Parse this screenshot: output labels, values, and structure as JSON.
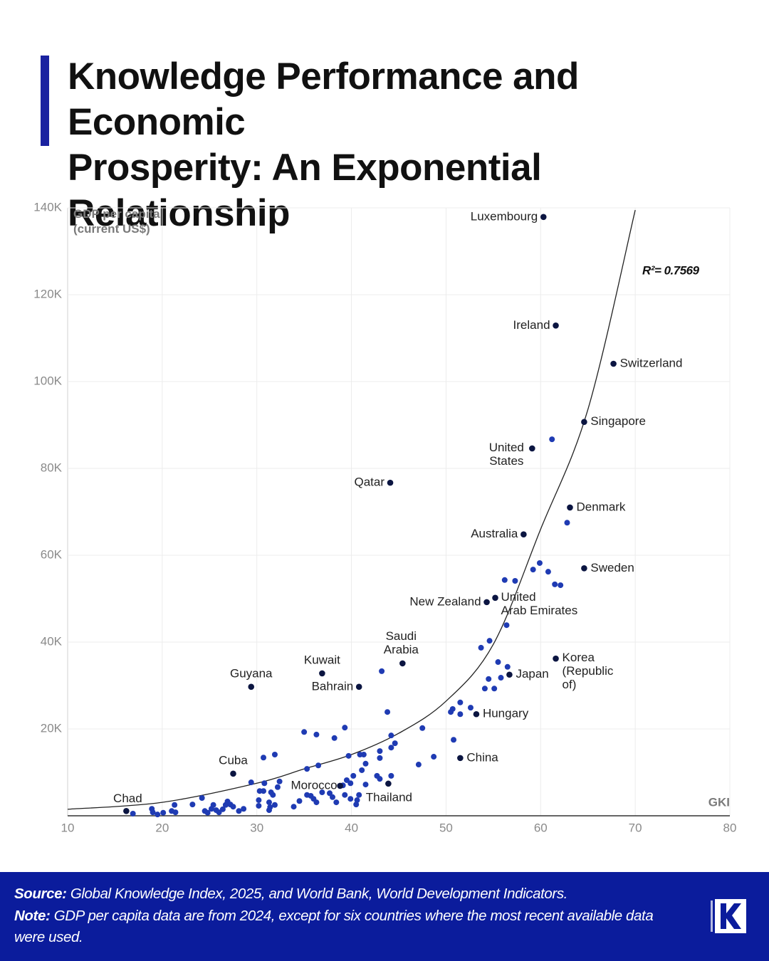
{
  "chart_data": {
    "type": "scatter",
    "title": "Knowledge Performance and Economic\nProsperity: An Exponential Relationship",
    "y_label": "GDP per capita\n(current US$)",
    "x_label": "GKI",
    "annotation": "R²= 0.7569",
    "xlim": [
      10,
      80
    ],
    "xticks": [
      10,
      20,
      30,
      40,
      50,
      60,
      70,
      80
    ],
    "ylim": [
      0,
      140000
    ],
    "yticks": [
      {
        "value": 20000,
        "label": "20K"
      },
      {
        "value": 40000,
        "label": "40K"
      },
      {
        "value": 60000,
        "label": "60K"
      },
      {
        "value": 80000,
        "label": "80K"
      },
      {
        "value": 100000,
        "label": "100K"
      },
      {
        "value": 120000,
        "label": "120K"
      },
      {
        "value": 140000,
        "label": "140K"
      }
    ],
    "grid": true,
    "point_color": "#1f3bb3",
    "labeled_color": "#0b1541",
    "trend_color": "#222222",
    "labeled_points": [
      {
        "label": "Luxembourg",
        "x": 60.3,
        "y": 137900
      },
      {
        "label": "Ireland",
        "x": 61.6,
        "y": 112900
      },
      {
        "label": "Switzerland",
        "x": 67.7,
        "y": 104100
      },
      {
        "label": "Singapore",
        "x": 64.6,
        "y": 90700
      },
      {
        "label": "United\nStates",
        "x": 59.1,
        "y": 84600
      },
      {
        "label": "Qatar",
        "x": 44.1,
        "y": 76700
      },
      {
        "label": "Denmark",
        "x": 63.1,
        "y": 71000
      },
      {
        "label": "Australia",
        "x": 58.2,
        "y": 64800
      },
      {
        "label": "Sweden",
        "x": 64.6,
        "y": 57000
      },
      {
        "label": "New Zealand",
        "x": 54.3,
        "y": 49200
      },
      {
        "label": "United\nArab Emirates",
        "x": 55.2,
        "y": 50200
      },
      {
        "label": "Saudi\nArabia",
        "x": 45.4,
        "y": 35100
      },
      {
        "label": "Korea\n(Republic\nof)",
        "x": 61.6,
        "y": 36200
      },
      {
        "label": "Japan",
        "x": 56.7,
        "y": 32500
      },
      {
        "label": "Kuwait",
        "x": 36.9,
        "y": 32800
      },
      {
        "label": "Guyana",
        "x": 29.4,
        "y": 29700
      },
      {
        "label": "Bahrain",
        "x": 40.8,
        "y": 29700
      },
      {
        "label": "Hungary",
        "x": 53.2,
        "y": 23400
      },
      {
        "label": "China",
        "x": 51.5,
        "y": 13300
      },
      {
        "label": "Cuba",
        "x": 27.5,
        "y": 9700
      },
      {
        "label": "Morocco",
        "x": 38.8,
        "y": 6900
      },
      {
        "label": "Thailand",
        "x": 43.9,
        "y": 7400
      },
      {
        "label": "Chad",
        "x": 16.2,
        "y": 1100
      }
    ],
    "points": {
      "x": [
        61.2,
        62.8,
        59.9,
        60.8,
        59.2,
        56.2,
        57.3,
        61.5,
        62.1,
        56.4,
        54.6,
        53.7,
        55.5,
        56.5,
        55.8,
        54.5,
        54.1,
        55.1,
        51.5,
        52.6,
        50.7,
        50.5,
        51.5,
        50.8,
        48.7,
        47.5,
        47.1,
        43.2,
        43.8,
        44.2,
        44.6,
        44.2,
        43.0,
        43.0,
        40.9,
        41.3,
        39.7,
        39.3,
        38.2,
        36.3,
        35.0,
        31.9,
        30.7,
        36.5,
        35.3,
        41.5,
        41.1,
        42.7,
        44.2,
        43.0,
        40.2,
        39.5,
        39.9,
        39.1,
        29.4,
        30.8,
        32.4,
        32.2,
        30.3,
        30.7,
        31.5,
        31.7,
        30.2,
        31.3,
        31.9,
        30.2,
        31.3,
        31.4,
        33.9,
        34.5,
        35.3,
        35.7,
        36.0,
        36.3,
        36.9,
        37.7,
        38.0,
        38.4,
        39.3,
        39.9,
        40.6,
        40.8,
        40.5,
        41.5,
        24.2,
        23.2,
        21.3,
        24.5,
        25.2,
        25.4,
        25.7,
        26.0,
        26.7,
        26.9,
        27.2,
        27.5,
        28.1,
        28.6,
        26.4,
        24.8,
        18.9,
        19.0,
        19.5,
        20.1,
        21.0,
        21.4,
        16.9
      ],
      "y": [
        86700,
        67500,
        58200,
        56200,
        56700,
        54300,
        54100,
        53300,
        53100,
        43900,
        40300,
        38700,
        35400,
        34300,
        31800,
        31500,
        29300,
        29300,
        26100,
        24900,
        24600,
        23900,
        23400,
        17500,
        13600,
        20200,
        11800,
        33300,
        23900,
        18500,
        16700,
        15700,
        14900,
        13300,
        14100,
        14100,
        13800,
        20300,
        17900,
        18700,
        19300,
        14100,
        13400,
        11600,
        10800,
        12000,
        10500,
        9200,
        9200,
        8500,
        9200,
        8200,
        7500,
        7000,
        7700,
        7500,
        7900,
        6600,
        5700,
        5700,
        5400,
        4800,
        3600,
        3100,
        2500,
        2300,
        1300,
        2000,
        2100,
        3400,
        4800,
        4600,
        3900,
        3100,
        5400,
        5200,
        4300,
        3100,
        4800,
        3900,
        3600,
        4800,
        2600,
        7200,
        4100,
        2600,
        2500,
        1100,
        1600,
        2500,
        1300,
        800,
        2500,
        3300,
        2600,
        2100,
        1100,
        1600,
        1500,
        700,
        1600,
        800,
        300,
        700,
        1100,
        800,
        500
      ]
    },
    "trendline": {
      "x": [
        10,
        20,
        30,
        35,
        40,
        45,
        50,
        55,
        60,
        65,
        70
      ],
      "y": [
        1500,
        3100,
        7500,
        10800,
        14100,
        19000,
        26400,
        39500,
        66000,
        93600,
        139500
      ]
    },
    "source": {
      "label": "Source:",
      "text": "Global Knowledge Index, 2025, and World Bank, World Development Indicators."
    },
    "note": {
      "label": "Note:",
      "text": "GDP per capita data are from 2024, except for six countries where the most recent available data were used."
    }
  }
}
